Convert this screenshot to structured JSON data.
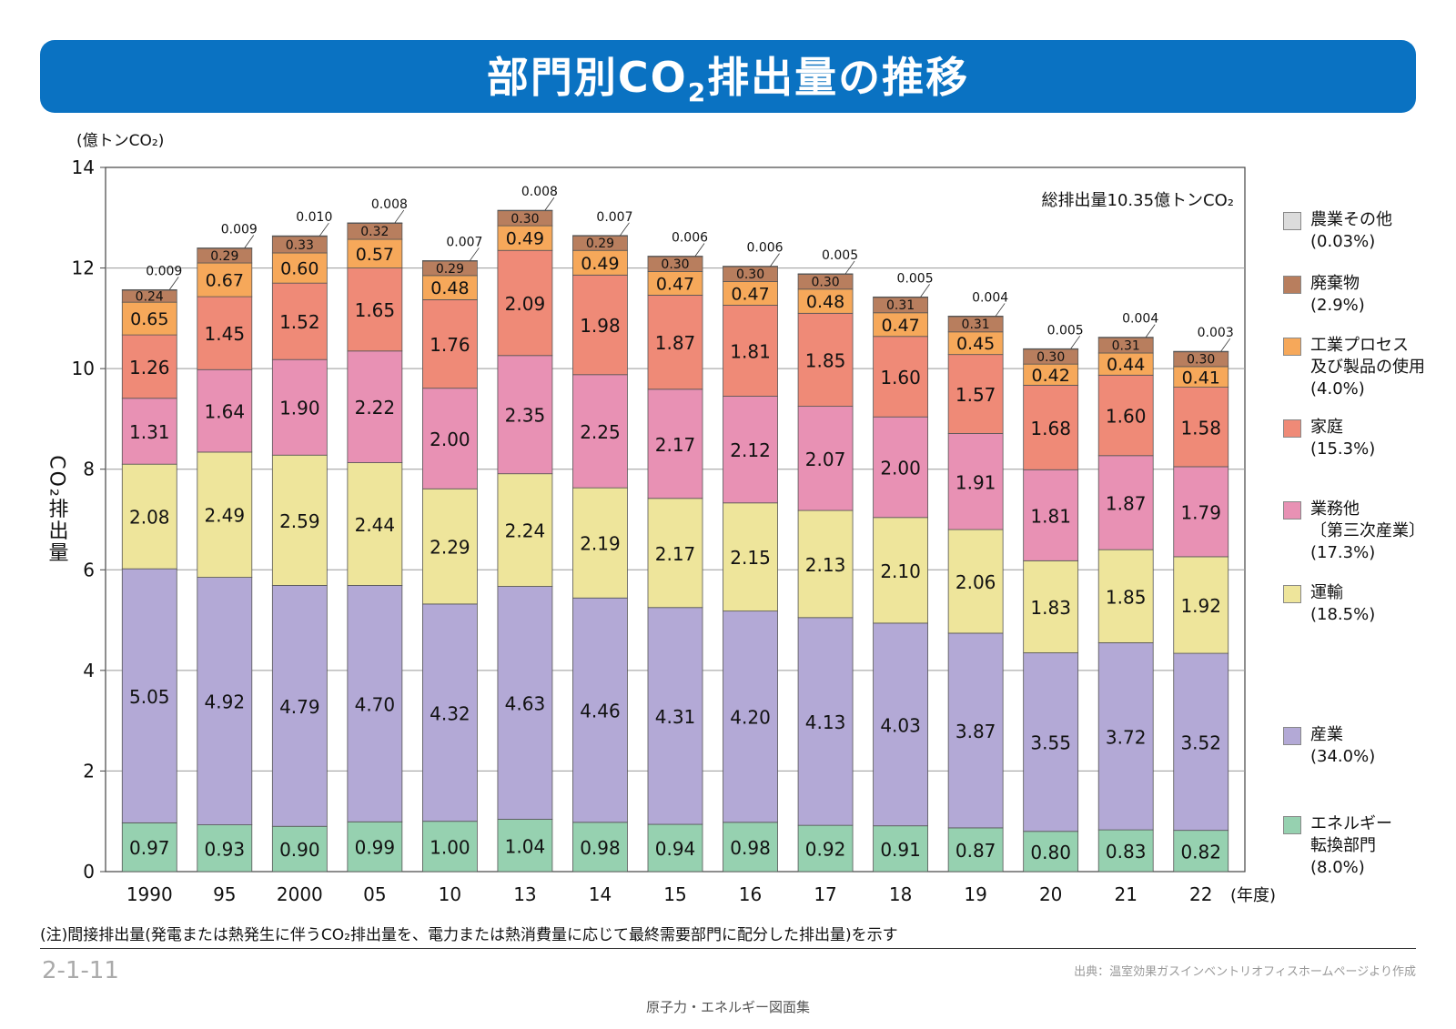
{
  "banner": {
    "title_main": "部門別CO",
    "title_sub": "2",
    "title_rest": "排出量の推移"
  },
  "note": "(注)間接排出量(発電または熱発生に伴うCO₂排出量を、電力または熱消費量に応じて最終需要部門に配分した排出量)を示す",
  "page_number": "2-1-11",
  "source": "出典：温室効果ガスインベントリオフィスホームページより作成",
  "footer": "原子力・エネルギー図面集",
  "chart_data": {
    "type": "bar",
    "stacked": true,
    "unit_label": "(億トンCO₂)",
    "ylabel": "CO₂排出量",
    "ylim": [
      0,
      14
    ],
    "yticks": [
      0,
      2,
      4,
      6,
      8,
      10,
      12,
      14
    ],
    "grid": true,
    "xunit": "(年度)",
    "total_annotation": "総排出量10.35億トンCO₂",
    "categories": [
      "1990",
      "95",
      "2000",
      "05",
      "10",
      "13",
      "14",
      "15",
      "16",
      "17",
      "18",
      "19",
      "20",
      "21",
      "22"
    ],
    "series": [
      {
        "name": "エネルギー転換部門",
        "legend": [
          "エネルギー",
          "転換部門"
        ],
        "pct": "(8.0%)",
        "color": "#96d1b0",
        "values": [
          0.97,
          0.93,
          0.9,
          0.99,
          1.0,
          1.04,
          0.98,
          0.94,
          0.98,
          0.92,
          0.91,
          0.87,
          0.8,
          0.83,
          0.82
        ],
        "labels": [
          "0.97",
          "0.93",
          "0.90",
          "0.99",
          "1.00",
          "1.04",
          "0.98",
          "0.94",
          "0.98",
          "0.92",
          "0.91",
          "0.87",
          "0.80",
          "0.83",
          "0.82"
        ]
      },
      {
        "name": "産業",
        "legend": [
          "産業"
        ],
        "pct": "(34.0%)",
        "color": "#b3a9d6",
        "values": [
          5.05,
          4.92,
          4.79,
          4.7,
          4.32,
          4.63,
          4.46,
          4.31,
          4.2,
          4.13,
          4.03,
          3.87,
          3.55,
          3.72,
          3.52
        ],
        "labels": [
          "5.05",
          "4.92",
          "4.79",
          "4.70",
          "4.32",
          "4.63",
          "4.46",
          "4.31",
          "4.20",
          "4.13",
          "4.03",
          "3.87",
          "3.55",
          "3.72",
          "3.52"
        ]
      },
      {
        "name": "運輸",
        "legend": [
          "運輸"
        ],
        "pct": "(18.5%)",
        "color": "#eee59b",
        "values": [
          2.08,
          2.49,
          2.59,
          2.44,
          2.29,
          2.24,
          2.19,
          2.17,
          2.15,
          2.13,
          2.1,
          2.06,
          1.83,
          1.85,
          1.92
        ],
        "labels": [
          "2.08",
          "2.49",
          "2.59",
          "2.44",
          "2.29",
          "2.24",
          "2.19",
          "2.17",
          "2.15",
          "2.13",
          "2.10",
          "2.06",
          "1.83",
          "1.85",
          "1.92"
        ]
      },
      {
        "name": "業務他（第三次産業）",
        "legend": [
          "業務他",
          "〔第三次産業〕"
        ],
        "pct": "(17.3%)",
        "color": "#e891b4",
        "values": [
          1.31,
          1.64,
          1.9,
          2.22,
          2.0,
          2.35,
          2.25,
          2.17,
          2.12,
          2.07,
          2.0,
          1.91,
          1.81,
          1.87,
          1.79
        ],
        "labels": [
          "1.31",
          "1.64",
          "1.90",
          "2.22",
          "2.00",
          "2.35",
          "2.25",
          "2.17",
          "2.12",
          "2.07",
          "2.00",
          "1.91",
          "1.81",
          "1.87",
          "1.79"
        ]
      },
      {
        "name": "家庭",
        "legend": [
          "家庭"
        ],
        "pct": "(15.3%)",
        "color": "#ef8a77",
        "values": [
          1.26,
          1.45,
          1.52,
          1.65,
          1.76,
          2.09,
          1.98,
          1.87,
          1.81,
          1.85,
          1.6,
          1.57,
          1.68,
          1.6,
          1.58
        ],
        "labels": [
          "1.26",
          "1.45",
          "1.52",
          "1.65",
          "1.76",
          "2.09",
          "1.98",
          "1.87",
          "1.81",
          "1.85",
          "1.60",
          "1.57",
          "1.68",
          "1.60",
          "1.58"
        ]
      },
      {
        "name": "工業プロセス及び製品の使用",
        "legend": [
          "工業プロセス",
          "及び製品の使用"
        ],
        "pct": "(4.0%)",
        "color": "#f6a85a",
        "values": [
          0.65,
          0.67,
          0.6,
          0.57,
          0.48,
          0.49,
          0.49,
          0.47,
          0.47,
          0.48,
          0.47,
          0.45,
          0.42,
          0.44,
          0.41
        ],
        "labels": [
          "0.65",
          "0.67",
          "0.60",
          "0.57",
          "0.48",
          "0.49",
          "0.49",
          "0.47",
          "0.47",
          "0.48",
          "0.47",
          "0.45",
          "0.42",
          "0.44",
          "0.41"
        ]
      },
      {
        "name": "廃棄物",
        "legend": [
          "廃棄物"
        ],
        "pct": "(2.9%)",
        "color": "#b87e5e",
        "values": [
          0.24,
          0.29,
          0.33,
          0.32,
          0.29,
          0.3,
          0.29,
          0.3,
          0.3,
          0.3,
          0.31,
          0.31,
          0.3,
          0.31,
          0.3
        ],
        "labels": [
          "0.24",
          "0.29",
          "0.33",
          "0.32",
          "0.29",
          "0.30",
          "0.29",
          "0.30",
          "0.30",
          "0.30",
          "0.31",
          "0.31",
          "0.30",
          "0.31",
          "0.30"
        ]
      },
      {
        "name": "農業その他",
        "legend": [
          "農業その他"
        ],
        "pct": "(0.03%)",
        "color": "#dcdcdc",
        "values": [
          0.009,
          0.009,
          0.01,
          0.008,
          0.007,
          0.008,
          0.007,
          0.006,
          0.006,
          0.005,
          0.005,
          0.004,
          0.005,
          0.004,
          0.003
        ],
        "labels": [
          "0.009",
          "0.009",
          "0.010",
          "0.008",
          "0.007",
          "0.008",
          "0.007",
          "0.006",
          "0.006",
          "0.005",
          "0.005",
          "0.004",
          "0.005",
          "0.004",
          "0.003"
        ]
      }
    ]
  }
}
